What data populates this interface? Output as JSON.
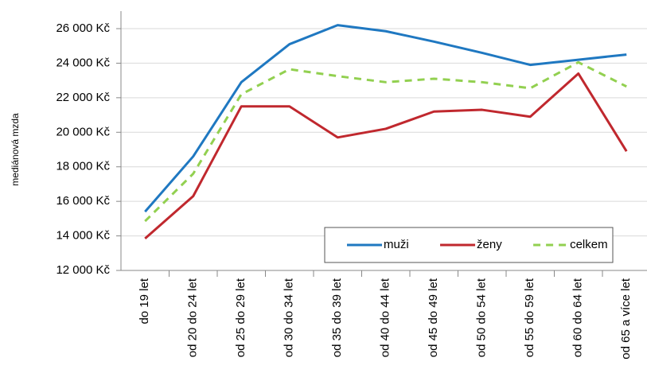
{
  "chart_data": {
    "type": "line",
    "y_label": "mediánová mzda",
    "categories": [
      "do 19 let",
      "od 20 do 24 let",
      "od 25 do 29 let",
      "od 30 do 34 let",
      "od 35 do 39 let",
      "od 40 do 44 let",
      "od 45 do 49 let",
      "od 50 do 54 let",
      "od 55 do 59 let",
      "od 60 do 64 let",
      "od 65 a více let"
    ],
    "series": [
      {
        "name": "muži",
        "color": "#1f78c1",
        "dashed": false,
        "values": [
          15400,
          18600,
          22900,
          25100,
          26200,
          25850,
          25250,
          24600,
          23900,
          24200,
          24500
        ]
      },
      {
        "name": "ženy",
        "color": "#c0282e",
        "dashed": false,
        "values": [
          13850,
          16300,
          21500,
          21500,
          19700,
          20200,
          21200,
          21300,
          20900,
          23400,
          18900
        ]
      },
      {
        "name": "celkem",
        "color": "#92d050",
        "dashed": true,
        "values": [
          14850,
          17600,
          22200,
          23650,
          23250,
          22900,
          23100,
          22900,
          22550,
          24050,
          22650
        ]
      }
    ],
    "ylim": [
      12000,
      26000
    ],
    "yticks": [
      {
        "value": 12000,
        "label": "12 000 Kč"
      },
      {
        "value": 14000,
        "label": "14 000 Kč"
      },
      {
        "value": 16000,
        "label": "16 000 Kč"
      },
      {
        "value": 18000,
        "label": "18 000 Kč"
      },
      {
        "value": 20000,
        "label": "20 000 Kč"
      },
      {
        "value": 22000,
        "label": "22 000 Kč"
      },
      {
        "value": 24000,
        "label": "24 000 Kč"
      },
      {
        "value": 26000,
        "label": "26 000 Kč"
      }
    ],
    "grid": true,
    "legend": "bottom-right"
  }
}
